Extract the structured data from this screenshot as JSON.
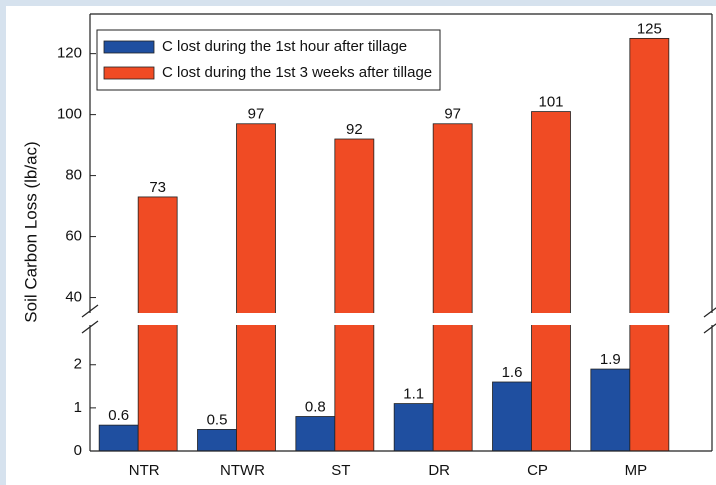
{
  "chart_data": {
    "type": "bar",
    "y_label": "Soil Carbon Loss (lb/ac)",
    "categories": [
      "NTR",
      "NTWR",
      "ST",
      "DR",
      "CP",
      "MP"
    ],
    "series": [
      {
        "name": "C lost during the 1st hour after tillage",
        "color": "#1f4fa0",
        "values": [
          0.6,
          0.5,
          0.8,
          1.1,
          1.6,
          1.9
        ]
      },
      {
        "name": "C lost during the 1st 3 weeks after tillage",
        "color": "#f04b24",
        "values": [
          73,
          97,
          92,
          97,
          101,
          125
        ]
      }
    ],
    "ylim_lower": [
      0,
      3.2
    ],
    "ylim_upper": [
      31,
      133
    ],
    "yticks": [
      0,
      1,
      2,
      40,
      60,
      80,
      100,
      120
    ],
    "legend": "upper left"
  }
}
